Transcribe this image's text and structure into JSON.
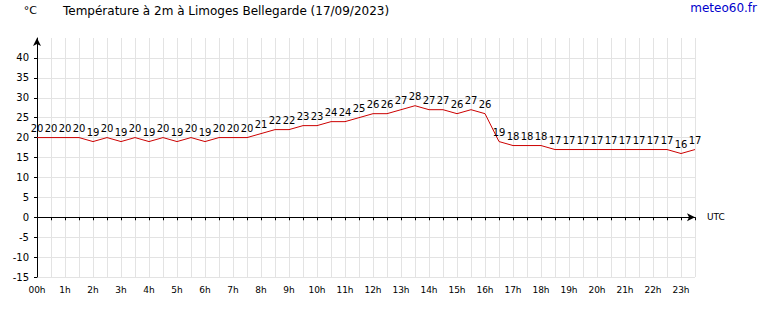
{
  "chart_data": {
    "type": "line",
    "title": "Température à 2m à Limoges Bellegarde (17/09/2023)",
    "annotations": [
      "meteo60.fr"
    ],
    "x_label": "UTC",
    "y_label": "°C",
    "categories": [
      "00h",
      null,
      "1h",
      null,
      "2h",
      null,
      "3h",
      null,
      "4h",
      null,
      "5h",
      null,
      "6h",
      null,
      "7h",
      null,
      "8h",
      null,
      "9h",
      null,
      "10h",
      null,
      "11h",
      null,
      "12h",
      null,
      "13h",
      null,
      "14h",
      null,
      "15h",
      null,
      "16h",
      null,
      "17h",
      null,
      "18h",
      null,
      "19h",
      null,
      "20h",
      null,
      "21h",
      null,
      "22h",
      null,
      "23h",
      null
    ],
    "values": [
      20,
      20,
      20,
      20,
      19,
      20,
      19,
      20,
      19,
      20,
      19,
      20,
      19,
      20,
      20,
      20,
      21,
      22,
      22,
      23,
      23,
      24,
      24,
      25,
      26,
      26,
      27,
      28,
      27,
      27,
      26,
      27,
      26,
      19,
      18,
      18,
      18,
      17,
      17,
      17,
      17,
      17,
      17,
      17,
      17,
      17,
      16,
      17
    ],
    "color": "#cc0000",
    "ylim": [
      -15,
      45
    ],
    "yticks": [
      -15,
      -10,
      -5,
      0,
      5,
      10,
      15,
      20,
      25,
      30,
      35,
      40
    ],
    "grid": true,
    "data_labels": true
  }
}
